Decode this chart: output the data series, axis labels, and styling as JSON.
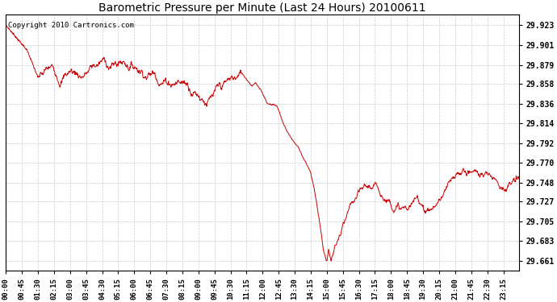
{
  "title": "Barometric Pressure per Minute (Last 24 Hours) 20100611",
  "copyright": "Copyright 2010 Cartronics.com",
  "line_color": "#cc0000",
  "bg_color": "#ffffff",
  "plot_bg_color": "#ffffff",
  "grid_color": "#cccccc",
  "yticks": [
    29.661,
    29.683,
    29.705,
    29.727,
    29.748,
    29.77,
    29.792,
    29.814,
    29.836,
    29.858,
    29.879,
    29.901,
    29.923
  ],
  "xtick_labels": [
    "00:00",
    "00:45",
    "01:30",
    "02:15",
    "03:00",
    "03:45",
    "04:30",
    "05:15",
    "06:00",
    "06:45",
    "07:30",
    "08:15",
    "09:00",
    "09:45",
    "10:30",
    "11:15",
    "12:00",
    "12:45",
    "13:30",
    "14:15",
    "15:00",
    "15:45",
    "16:30",
    "17:15",
    "18:00",
    "18:45",
    "19:30",
    "20:15",
    "21:00",
    "21:45",
    "22:30",
    "23:15"
  ],
  "ylim": [
    29.65,
    29.935
  ],
  "n_points": 1440
}
